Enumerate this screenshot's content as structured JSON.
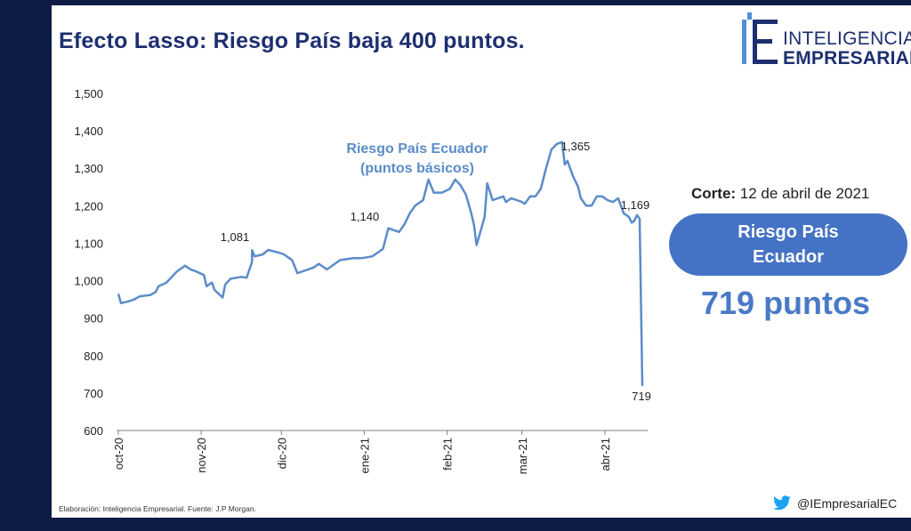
{
  "slide": {
    "title": "Efecto Lasso: Riesgo País baja 400 puntos.",
    "logo_line1": "INTELIGENCIA",
    "logo_line2": "EMPRESARIAL",
    "corte_label": "Corte:",
    "corte_date": "12 de abril de 2021",
    "pill_text": "Riesgo País Ecuador",
    "big_value": "719 puntos",
    "footer": "Elaboración: Inteligencia Empresarial.    Fuente: J.P Morgan.",
    "twitter_handle": "@IEmpresarialEC",
    "colors": {
      "background": "#0d1b45",
      "title": "#1d2f6f",
      "line": "#5b8cc8",
      "pill": "#4472c4",
      "big_value": "#4a7ac6",
      "logo_accent": "#4f8fd6"
    }
  },
  "chart_data": {
    "type": "line",
    "series_label_line1": "Riesgo País Ecuador",
    "series_label_line2": "(puntos básicos)",
    "ylim": [
      600,
      1500
    ],
    "yticks": [
      "600",
      "700",
      "800",
      "900",
      "1,000",
      "1,100",
      "1,200",
      "1,300",
      "1,400",
      "1,500"
    ],
    "xtick_labels": [
      "oct-20",
      "nov-20",
      "dic-20",
      "ene-21",
      "feb-21",
      "mar-21",
      "abr-21"
    ],
    "xtick_dates": [
      "2020-10-01",
      "2020-11-01",
      "2020-12-01",
      "2021-01-01",
      "2021-02-01",
      "2021-03-01",
      "2021-04-01"
    ],
    "grid": false,
    "annotations": [
      {
        "date": "2020-11-10",
        "value": 1081,
        "label": "1,081"
      },
      {
        "date": "2021-01-04",
        "value": 1140,
        "label": "1,140"
      },
      {
        "date": "2021-02-27",
        "value": 1365,
        "label": "1,365"
      },
      {
        "date": "2021-03-31",
        "value": 1169,
        "label": "1,169"
      },
      {
        "date": "2021-04-05",
        "value": 719,
        "label": "719"
      }
    ],
    "points": [
      [
        "2020-10-01",
        965
      ],
      [
        "2020-10-02",
        940
      ],
      [
        "2020-10-05",
        945
      ],
      [
        "2020-10-07",
        950
      ],
      [
        "2020-10-09",
        958
      ],
      [
        "2020-10-13",
        962
      ],
      [
        "2020-10-15",
        970
      ],
      [
        "2020-10-16",
        985
      ],
      [
        "2020-10-19",
        995
      ],
      [
        "2020-10-21",
        1010
      ],
      [
        "2020-10-23",
        1025
      ],
      [
        "2020-10-26",
        1040
      ],
      [
        "2020-10-28",
        1030
      ],
      [
        "2020-10-30",
        1025
      ],
      [
        "2020-11-02",
        1015
      ],
      [
        "2020-11-03",
        985
      ],
      [
        "2020-11-05",
        995
      ],
      [
        "2020-11-06",
        975
      ],
      [
        "2020-11-09",
        955
      ],
      [
        "2020-11-10",
        990
      ],
      [
        "2020-11-12",
        1005
      ],
      [
        "2020-11-16",
        1010
      ],
      [
        "2020-11-18",
        1008
      ],
      [
        "2020-11-20",
        1050
      ],
      [
        "2020-11-20",
        1081
      ],
      [
        "2020-11-21",
        1065
      ],
      [
        "2020-11-24",
        1070
      ],
      [
        "2020-11-26",
        1082
      ],
      [
        "2020-11-30",
        1075
      ],
      [
        "2020-12-02",
        1070
      ],
      [
        "2020-12-04",
        1060
      ],
      [
        "2020-12-05",
        1055
      ],
      [
        "2020-12-07",
        1020
      ],
      [
        "2020-12-09",
        1025
      ],
      [
        "2020-12-11",
        1030
      ],
      [
        "2020-12-13",
        1035
      ],
      [
        "2020-12-15",
        1045
      ],
      [
        "2020-12-18",
        1030
      ],
      [
        "2020-12-21",
        1045
      ],
      [
        "2020-12-23",
        1055
      ],
      [
        "2020-12-28",
        1060
      ],
      [
        "2020-12-31",
        1060
      ],
      [
        "2021-01-04",
        1065
      ],
      [
        "2021-01-06",
        1075
      ],
      [
        "2021-01-08",
        1085
      ],
      [
        "2021-01-10",
        1140
      ],
      [
        "2021-01-12",
        1135
      ],
      [
        "2021-01-14",
        1130
      ],
      [
        "2021-01-16",
        1150
      ],
      [
        "2021-01-18",
        1180
      ],
      [
        "2021-01-20",
        1200
      ],
      [
        "2021-01-23",
        1215
      ],
      [
        "2021-01-25",
        1270
      ],
      [
        "2021-01-27",
        1235
      ],
      [
        "2021-01-30",
        1235
      ],
      [
        "2021-02-02",
        1245
      ],
      [
        "2021-02-04",
        1270
      ],
      [
        "2021-02-06",
        1255
      ],
      [
        "2021-02-08",
        1230
      ],
      [
        "2021-02-10",
        1180
      ],
      [
        "2021-02-11",
        1150
      ],
      [
        "2021-02-12",
        1095
      ],
      [
        "2021-02-15",
        1170
      ],
      [
        "2021-02-16",
        1260
      ],
      [
        "2021-02-18",
        1215
      ],
      [
        "2021-02-20",
        1220
      ],
      [
        "2021-02-22",
        1225
      ],
      [
        "2021-02-23",
        1210
      ],
      [
        "2021-02-25",
        1220
      ],
      [
        "2021-02-27",
        1215
      ],
      [
        "2021-03-01",
        1210
      ],
      [
        "2021-03-02",
        1205
      ],
      [
        "2021-03-04",
        1225
      ],
      [
        "2021-03-06",
        1225
      ],
      [
        "2021-03-08",
        1245
      ],
      [
        "2021-03-10",
        1300
      ],
      [
        "2021-03-12",
        1350
      ],
      [
        "2021-03-14",
        1365
      ],
      [
        "2021-03-16",
        1370
      ],
      [
        "2021-03-17",
        1310
      ],
      [
        "2021-03-18",
        1320
      ],
      [
        "2021-03-20",
        1280
      ],
      [
        "2021-03-22",
        1250
      ],
      [
        "2021-03-23",
        1220
      ],
      [
        "2021-03-25",
        1200
      ],
      [
        "2021-03-27",
        1200
      ],
      [
        "2021-03-29",
        1225
      ],
      [
        "2021-03-31",
        1225
      ],
      [
        "2021-04-02",
        1215
      ],
      [
        "2021-04-04",
        1210
      ],
      [
        "2021-04-06",
        1220
      ],
      [
        "2021-04-08",
        1180
      ],
      [
        "2021-04-09",
        1175
      ],
      [
        "2021-04-10",
        1170
      ],
      [
        "2021-04-11",
        1155
      ],
      [
        "2021-04-12",
        1160
      ],
      [
        "2021-04-13",
        1175
      ],
      [
        "2021-04-14",
        1165
      ],
      [
        "2021-04-15",
        719
      ]
    ]
  }
}
